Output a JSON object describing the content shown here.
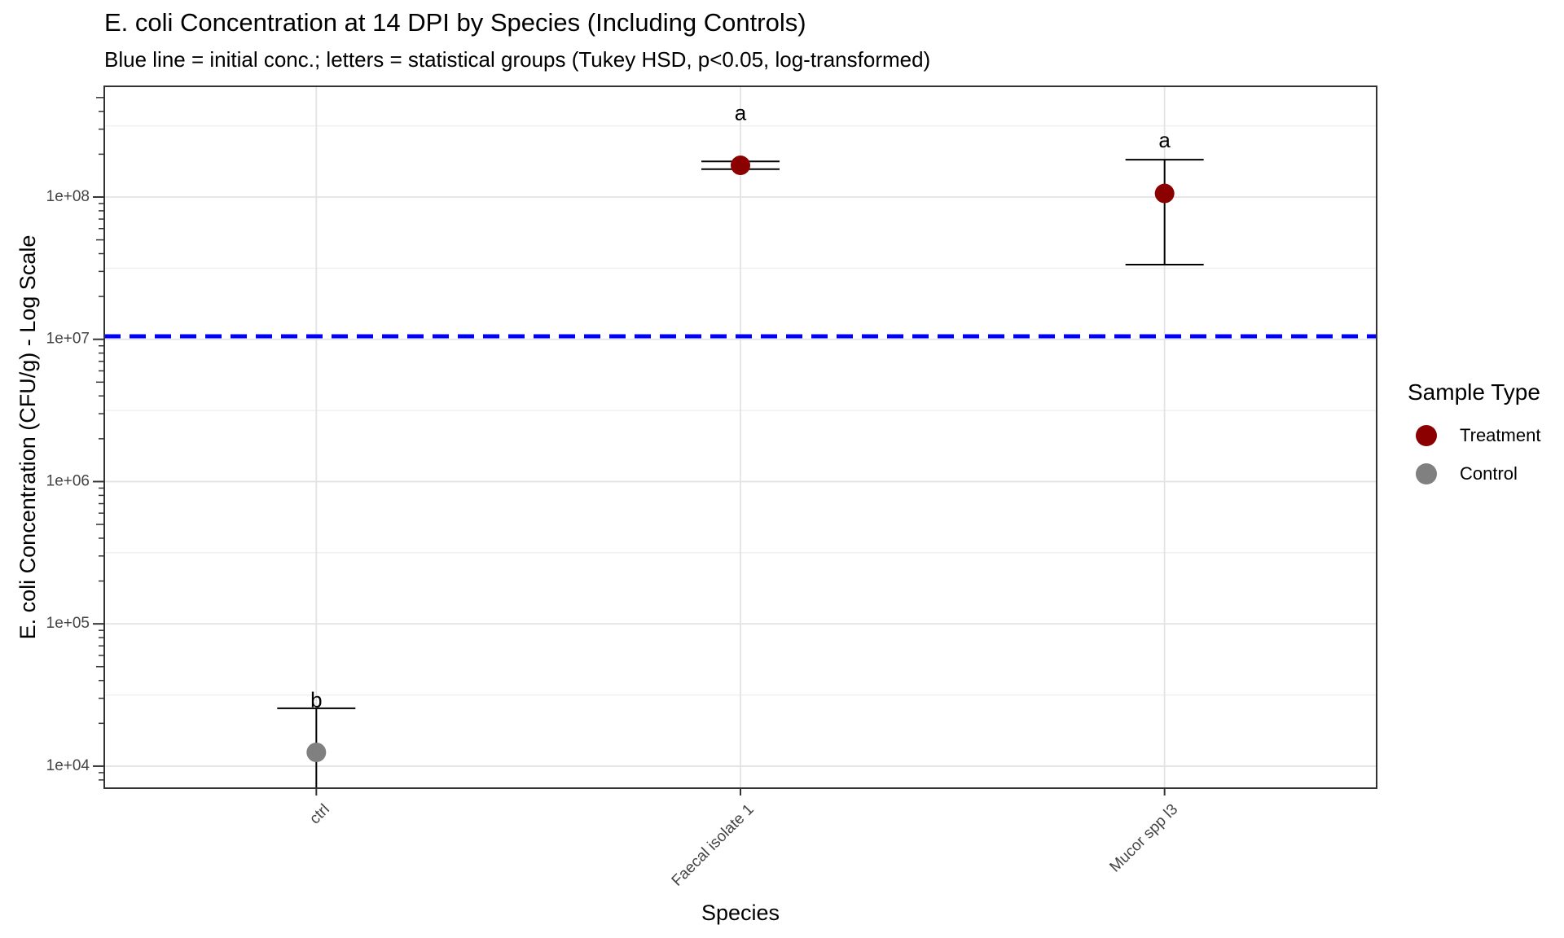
{
  "chart_data": {
    "type": "scatter",
    "title": "E. coli Concentration at 14 DPI by Species (Including Controls)",
    "subtitle": "Blue line = initial conc.; letters = statistical groups (Tukey HSD, p<0.05, log-transformed)",
    "xlabel": "Species",
    "ylabel": "E. coli Concentration (CFU/g) - Log Scale",
    "y_scale": "log10",
    "ylim": [
      7000,
      600000000
    ],
    "y_ticks": [
      10000,
      100000,
      1000000,
      10000000,
      100000000
    ],
    "y_tick_labels": [
      "1e+04",
      "1e+05",
      "1e+06",
      "1e+07",
      "1e+08"
    ],
    "categories": [
      "ctrl",
      "Faecal isolate 1",
      "Mucor spp l3"
    ],
    "points": [
      {
        "category": "ctrl",
        "value": 12500,
        "lower": 5000,
        "upper": 25500,
        "type": "Control",
        "letter": "b"
      },
      {
        "category": "Faecal isolate 1",
        "value": 167000000,
        "lower": 157000000,
        "upper": 178000000,
        "type": "Treatment",
        "letter": "a"
      },
      {
        "category": "Mucor spp l3",
        "value": 106000000,
        "lower": 33500000,
        "upper": 183000000,
        "type": "Treatment",
        "letter": "a"
      }
    ],
    "reference_line": {
      "value": 10500000,
      "color": "#0000ff",
      "style": "dashed"
    },
    "letter_y": [
      28500,
      380000000,
      245000000
    ],
    "grid": true,
    "legend": {
      "title": "Sample Type",
      "placement": "right",
      "entries": [
        {
          "label": "Treatment",
          "color": "#8b0000"
        },
        {
          "label": "Control",
          "color": "#808080"
        }
      ]
    }
  }
}
